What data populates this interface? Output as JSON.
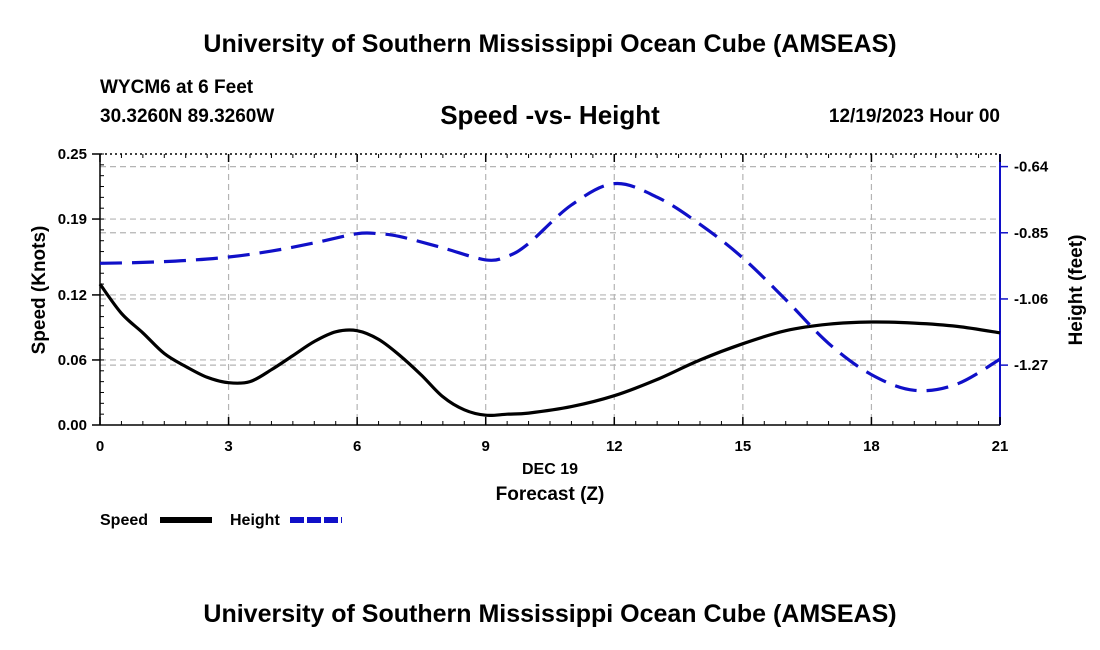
{
  "header": {
    "title": "University of Southern Mississippi Ocean Cube (AMSEAS)",
    "station": "WYCM6 at 6 Feet",
    "coords": "30.3260N  89.3260W",
    "date_hour": "12/19/2023 Hour 00"
  },
  "footer": {
    "title": "University of Southern Mississippi Ocean Cube (AMSEAS)"
  },
  "colors": {
    "speed": "#000000",
    "height": "#1010c8",
    "grid": "#b4b4b4"
  },
  "chart_data": {
    "type": "line",
    "title": "Speed -vs- Height",
    "xlabel": "Forecast (Z)",
    "xsub_label": "DEC 19",
    "ylabel": "Speed (Knots)",
    "y2label": "Height (feet)",
    "xlim": [
      0,
      21
    ],
    "xticks": [
      0,
      3,
      6,
      9,
      12,
      15,
      18,
      21
    ],
    "xtick_labels": [
      "0",
      "3",
      "6",
      "9",
      "12",
      "15",
      "18",
      "21"
    ],
    "ylim": [
      0,
      0.25
    ],
    "yticks": [
      0,
      0.06,
      0.12,
      0.19,
      0.25
    ],
    "ytick_labels": [
      "0.00",
      "0.06",
      "0.12",
      "0.19",
      "0.25"
    ],
    "y2lim": [
      -1.46,
      -0.6
    ],
    "y2ticks": [
      -0.64,
      -0.85,
      -1.06,
      -1.27
    ],
    "y2tick_labels": [
      "-0.64",
      "-0.85",
      "-1.06",
      "-1.27"
    ],
    "grid": true,
    "legend": [
      {
        "name": "Speed",
        "style": "solid"
      },
      {
        "name": "Height",
        "style": "dashed"
      }
    ],
    "series": [
      {
        "name": "Speed",
        "axis": "left",
        "style": "solid",
        "x": [
          0,
          0.5,
          1,
          1.5,
          2,
          2.5,
          3,
          3.5,
          4,
          4.5,
          5,
          5.5,
          6,
          6.5,
          7,
          7.5,
          8,
          8.5,
          9,
          9.5,
          10,
          11,
          12,
          13,
          14,
          15,
          16,
          17,
          18,
          19,
          20,
          21
        ],
        "y": [
          0.13,
          0.103,
          0.085,
          0.066,
          0.054,
          0.044,
          0.039,
          0.04,
          0.051,
          0.064,
          0.077,
          0.086,
          0.087,
          0.079,
          0.064,
          0.046,
          0.026,
          0.014,
          0.009,
          0.01,
          0.011,
          0.017,
          0.027,
          0.042,
          0.06,
          0.075,
          0.087,
          0.093,
          0.095,
          0.094,
          0.091,
          0.085
        ]
      },
      {
        "name": "Height",
        "axis": "right",
        "style": "dashed",
        "x": [
          0,
          1,
          2,
          3,
          4,
          5,
          6,
          6.5,
          7,
          8,
          9,
          9.5,
          10,
          11,
          12,
          13,
          14,
          15,
          16,
          17,
          18,
          19,
          20,
          21
        ],
        "y": [
          -0.947,
          -0.944,
          -0.938,
          -0.927,
          -0.908,
          -0.882,
          -0.853,
          -0.853,
          -0.862,
          -0.898,
          -0.936,
          -0.925,
          -0.884,
          -0.762,
          -0.694,
          -0.737,
          -0.823,
          -0.93,
          -1.062,
          -1.201,
          -1.3,
          -1.35,
          -1.33,
          -1.251
        ]
      }
    ]
  }
}
